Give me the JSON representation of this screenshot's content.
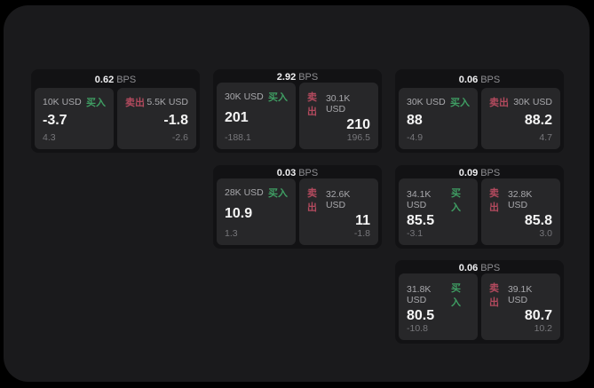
{
  "colors": {
    "panel_bg": "#1a1a1c",
    "card_bg": "#121214",
    "tile_bg": "#272729",
    "buy": "#3f9e63",
    "sell": "#b34a5e",
    "label": "#a8a8ac",
    "muted": "#77777b",
    "value": "#f5f5f5",
    "bps_label": "#8e8e92"
  },
  "buy_label": "买入",
  "sell_label": "卖出",
  "bps_unit": "BPS",
  "cards": [
    {
      "col": 1,
      "row": 1,
      "bps": "0.62",
      "buy": {
        "amount": "10K USD",
        "value": "-3.7",
        "sub": "4.3"
      },
      "sell": {
        "amount": "5.5K USD",
        "value": "-1.8",
        "sub": "-2.6"
      }
    },
    {
      "col": 2,
      "row": 1,
      "bps": "2.92",
      "buy": {
        "amount": "30K USD",
        "value": "201",
        "sub": "-188.1"
      },
      "sell": {
        "amount": "30.1K USD",
        "value": "210",
        "sub": "196.5"
      }
    },
    {
      "col": 3,
      "row": 1,
      "bps": "0.06",
      "buy": {
        "amount": "30K USD",
        "value": "88",
        "sub": "-4.9"
      },
      "sell": {
        "amount": "30K USD",
        "value": "88.2",
        "sub": "4.7"
      }
    },
    {
      "col": 2,
      "row": 2,
      "bps": "0.03",
      "buy": {
        "amount": "28K USD",
        "value": "10.9",
        "sub": "1.3"
      },
      "sell": {
        "amount": "32.6K USD",
        "value": "11",
        "sub": "-1.8"
      }
    },
    {
      "col": 3,
      "row": 2,
      "bps": "0.09",
      "buy": {
        "amount": "34.1K USD",
        "value": "85.5",
        "sub": "-3.1"
      },
      "sell": {
        "amount": "32.8K USD",
        "value": "85.8",
        "sub": "3.0"
      }
    },
    {
      "col": 3,
      "row": 3,
      "bps": "0.06",
      "buy": {
        "amount": "31.8K USD",
        "value": "80.5",
        "sub": "-10.8"
      },
      "sell": {
        "amount": "39.1K USD",
        "value": "80.7",
        "sub": "10.2"
      }
    }
  ]
}
